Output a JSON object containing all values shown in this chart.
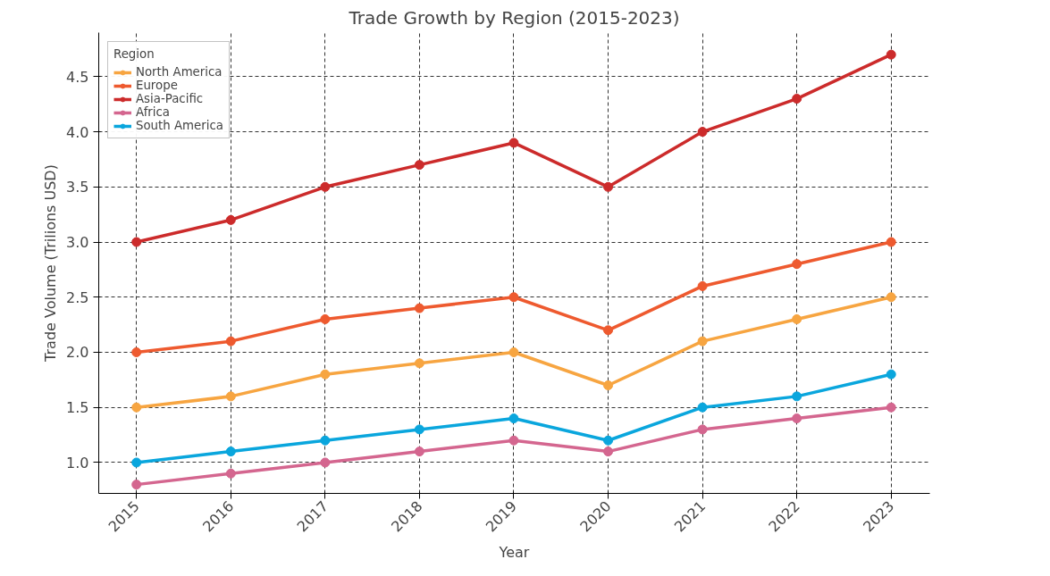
{
  "chart_data": {
    "type": "line",
    "title": "Trade Growth by Region (2015-2023)",
    "xlabel": "Year",
    "ylabel": "Trade Volume (Trilions USD)",
    "legend_title": "Region",
    "x": [
      2015,
      2016,
      2017,
      2018,
      2019,
      2020,
      2021,
      2022,
      2023
    ],
    "series": [
      {
        "name": "North America",
        "color": "#f7a541",
        "values": [
          1.5,
          1.6,
          1.8,
          1.9,
          2.0,
          1.7,
          2.1,
          2.3,
          2.5
        ]
      },
      {
        "name": "Europe",
        "color": "#ee5a2f",
        "values": [
          2.0,
          2.1,
          2.3,
          2.4,
          2.5,
          2.2,
          2.6,
          2.8,
          3.0
        ]
      },
      {
        "name": "Asia-Pacific",
        "color": "#cc2b2b",
        "values": [
          3.0,
          3.2,
          3.5,
          3.7,
          3.9,
          3.5,
          4.0,
          4.3,
          4.7
        ]
      },
      {
        "name": "Africa",
        "color": "#d4668f",
        "values": [
          0.8,
          0.9,
          1.0,
          1.1,
          1.2,
          1.1,
          1.3,
          1.4,
          1.5
        ]
      },
      {
        "name": "South America",
        "color": "#0aa6dd",
        "values": [
          1.0,
          1.1,
          1.2,
          1.3,
          1.4,
          1.2,
          1.5,
          1.6,
          1.8
        ]
      }
    ],
    "xlim": [
      2014.6,
      2023.41
    ],
    "ylim": [
      0.72,
      4.9
    ],
    "xticks": [
      2015,
      2016,
      2017,
      2018,
      2019,
      2020,
      2021,
      2022,
      2023
    ],
    "yticks": [
      {
        "value": 1.0,
        "label": "1.0"
      },
      {
        "value": 1.5,
        "label": "1.5"
      },
      {
        "value": 2.0,
        "label": "2.0"
      },
      {
        "value": 2.5,
        "label": "2.5"
      },
      {
        "value": 3.0,
        "label": "3.0"
      },
      {
        "value": 3.5,
        "label": "3.5"
      },
      {
        "value": 4.0,
        "label": "4.0"
      },
      {
        "value": 4.5,
        "label": "4.5"
      }
    ],
    "grid": true,
    "legend": "top left",
    "marker": "circle",
    "line_style": "solid"
  }
}
